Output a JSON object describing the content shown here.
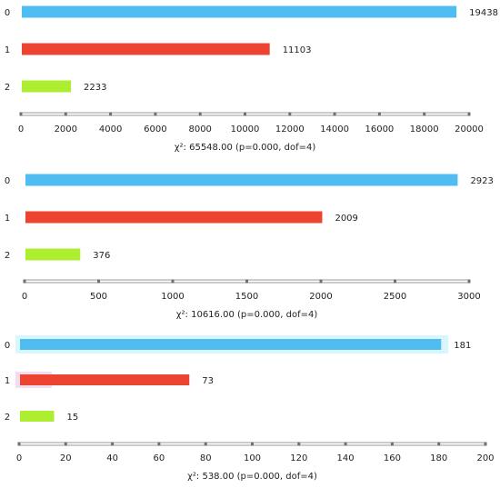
{
  "colors": {
    "cat0": "#4fbdf2",
    "cat1": "#ec4430",
    "cat2": "#adee31",
    "axis": "#9a9a9a",
    "highlight0": "#d8f6fb",
    "highlight1": "#f7dcef"
  },
  "chart_data": [
    {
      "type": "bar",
      "orientation": "horizontal",
      "categories": [
        "0",
        "1",
        "2"
      ],
      "values": [
        19438,
        11103,
        2233
      ],
      "xlim": [
        0,
        20000
      ],
      "xticks": [
        0,
        2000,
        4000,
        6000,
        8000,
        10000,
        12000,
        14000,
        16000,
        18000,
        20000
      ],
      "xtick_labels": [
        "0",
        "2000",
        "4000",
        "6000",
        "8000",
        "10000",
        "12000",
        "14000",
        "16000",
        "18000",
        "20000"
      ],
      "value_labels": [
        "19438",
        "11103",
        "2233"
      ],
      "subtitle": "χ²: 65548.00 (p=0.000, dof=4)"
    },
    {
      "type": "bar",
      "orientation": "horizontal",
      "categories": [
        "0",
        "1",
        "2"
      ],
      "values": [
        2923,
        2009,
        376
      ],
      "xlim": [
        0,
        3000
      ],
      "xticks": [
        0,
        500,
        1000,
        1500,
        2000,
        2500,
        3000
      ],
      "xtick_labels": [
        "0",
        "500",
        "1000",
        "1500",
        "2000",
        "2500",
        "3000"
      ],
      "value_labels": [
        "2923",
        "2009",
        "376"
      ],
      "subtitle": "χ²: 10616.00 (p=0.000, dof=4)"
    },
    {
      "type": "bar",
      "orientation": "horizontal",
      "categories": [
        "0",
        "1",
        "2"
      ],
      "values": [
        181,
        73,
        15
      ],
      "xlim": [
        0,
        200
      ],
      "xticks": [
        0,
        20,
        40,
        60,
        80,
        100,
        120,
        140,
        160,
        180,
        200
      ],
      "xtick_labels": [
        "0",
        "20",
        "40",
        "60",
        "80",
        "100",
        "120",
        "140",
        "160",
        "180",
        "200"
      ],
      "value_labels": [
        "181",
        "73",
        "15"
      ],
      "subtitle": "χ²: 538.00 (p=0.000, dof=4)"
    }
  ]
}
